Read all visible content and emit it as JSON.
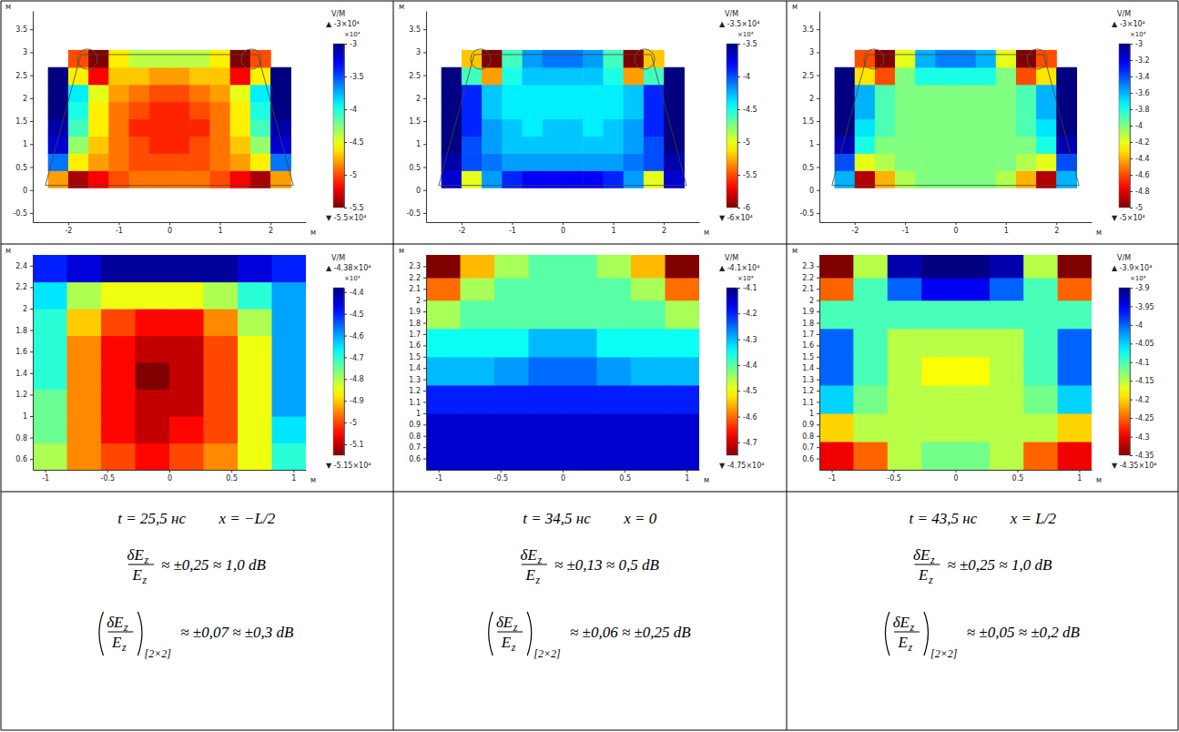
{
  "chart_data": [
    {
      "type": "heatmap",
      "x_edges": [
        -2.4,
        -2.0,
        -1.6,
        -1.2,
        -0.8,
        -0.4,
        0,
        0.4,
        0.8,
        1.2,
        1.6,
        2.0,
        2.4
      ],
      "y_edges": [
        0.05,
        0.425,
        0.8,
        1.175,
        1.55,
        1.925,
        2.3,
        2.675,
        3.05
      ],
      "z": [
        [
          -4.8,
          -5.4,
          -5.2,
          -5.0,
          -4.9,
          -4.9,
          -4.9,
          -4.9,
          -5.0,
          -5.2,
          -5.4,
          -4.8
        ],
        [
          -3.6,
          -4.6,
          -4.8,
          -4.9,
          -5.0,
          -5.0,
          -5.0,
          -5.0,
          -4.9,
          -4.8,
          -4.6,
          -3.6
        ],
        [
          -3.2,
          -4.3,
          -4.7,
          -4.9,
          -5.0,
          -5.1,
          -5.1,
          -5.0,
          -4.9,
          -4.7,
          -4.3,
          -3.2
        ],
        [
          -3.1,
          -4.1,
          -4.6,
          -4.9,
          -5.1,
          -5.1,
          -5.1,
          -5.1,
          -4.9,
          -4.6,
          -4.1,
          -3.1
        ],
        [
          -3.0,
          -4.0,
          -4.6,
          -4.9,
          -5.0,
          -5.1,
          -5.1,
          -5.0,
          -4.9,
          -4.6,
          -4.0,
          -3.0
        ],
        [
          -3.0,
          -3.9,
          -4.5,
          -4.8,
          -4.9,
          -5.0,
          -5.0,
          -4.9,
          -4.8,
          -4.5,
          -3.9,
          -3.0
        ],
        [
          -3.0,
          -4.6,
          -5.2,
          -4.7,
          -4.7,
          -4.8,
          -4.8,
          -4.7,
          -4.7,
          -5.2,
          -4.6,
          -3.0
        ],
        [
          null,
          -5.0,
          -5.5,
          -4.6,
          -4.4,
          -4.4,
          -4.4,
          -4.4,
          -4.6,
          -5.5,
          -5.0,
          null
        ]
      ],
      "xlim": [
        -2.7,
        2.7
      ],
      "ylim": [
        -0.7,
        3.9
      ],
      "xticks": [
        -2,
        -1,
        0,
        1,
        2
      ],
      "yticks": [
        -0.5,
        0,
        0.5,
        1,
        1.5,
        2,
        2.5,
        3,
        3.5
      ],
      "x_label": "м",
      "y_label": "м",
      "outline": [
        [
          -1.75,
          2.95
        ],
        [
          1.75,
          2.95
        ],
        [
          2.45,
          0.1
        ],
        [
          -2.45,
          0.1
        ]
      ],
      "wires": [
        [
          -1.62,
          2.85
        ],
        [
          1.62,
          2.85
        ]
      ],
      "wire_radius": 0.2,
      "colorbar": {
        "label": "V/M",
        "scale_label": "×10⁴",
        "max_label": "▲ -3×10⁴",
        "min_label": "▼ -5.5×10⁴",
        "range": [
          -5.5,
          -3
        ],
        "ticks": [
          -3,
          -3.5,
          -4,
          -4.5,
          -5,
          -5.5
        ]
      }
    },
    {
      "type": "heatmap",
      "x_edges": [
        -2.4,
        -2.0,
        -1.6,
        -1.2,
        -0.8,
        -0.4,
        0,
        0.4,
        0.8,
        1.2,
        1.6,
        2.0,
        2.4
      ],
      "y_edges": [
        0.05,
        0.425,
        0.8,
        1.175,
        1.55,
        1.925,
        2.3,
        2.675,
        3.05
      ],
      "z": [
        [
          -3.7,
          -5.0,
          -4.2,
          -3.9,
          -3.8,
          -3.8,
          -3.8,
          -3.8,
          -3.9,
          -4.2,
          -5.0,
          -3.7
        ],
        [
          -3.6,
          -4.0,
          -4.1,
          -4.2,
          -4.2,
          -4.2,
          -4.2,
          -4.2,
          -4.2,
          -4.1,
          -4.0,
          -3.6
        ],
        [
          -3.5,
          -4.0,
          -4.2,
          -4.3,
          -4.3,
          -4.3,
          -4.3,
          -4.3,
          -4.3,
          -4.2,
          -4.0,
          -3.5
        ],
        [
          -3.5,
          -3.9,
          -4.2,
          -4.3,
          -4.4,
          -4.3,
          -4.3,
          -4.4,
          -4.3,
          -4.2,
          -3.9,
          -3.5
        ],
        [
          -3.5,
          -3.9,
          -4.3,
          -4.4,
          -4.4,
          -4.4,
          -4.4,
          -4.4,
          -4.4,
          -4.3,
          -3.9,
          -3.5
        ],
        [
          -3.5,
          -3.9,
          -4.3,
          -4.4,
          -4.4,
          -4.4,
          -4.4,
          -4.4,
          -4.4,
          -4.3,
          -3.9,
          -3.5
        ],
        [
          -3.5,
          -4.6,
          -5.3,
          -4.5,
          -4.3,
          -4.3,
          -4.3,
          -4.3,
          -4.5,
          -5.3,
          -4.6,
          -3.5
        ],
        [
          null,
          -5.2,
          -6.0,
          -4.6,
          -4.2,
          -4.1,
          -4.1,
          -4.2,
          -4.6,
          -6.0,
          -5.2,
          null
        ]
      ],
      "xlim": [
        -2.7,
        2.7
      ],
      "ylim": [
        -0.7,
        3.9
      ],
      "xticks": [
        -2,
        -1,
        0,
        1,
        2
      ],
      "yticks": [
        -0.5,
        0,
        0.5,
        1,
        1.5,
        2,
        2.5,
        3,
        3.5
      ],
      "x_label": "м",
      "y_label": "м",
      "outline": [
        [
          -1.75,
          2.95
        ],
        [
          1.75,
          2.95
        ],
        [
          2.45,
          0.1
        ],
        [
          -2.45,
          0.1
        ]
      ],
      "wires": [
        [
          -1.62,
          2.85
        ],
        [
          1.62,
          2.85
        ]
      ],
      "wire_radius": 0.2,
      "colorbar": {
        "label": "V/M",
        "scale_label": "×10⁴",
        "max_label": "▲ -3.5×10⁴",
        "min_label": "▼ -6×10⁴",
        "range": [
          -6,
          -3.5
        ],
        "ticks": [
          -3.5,
          -4,
          -4.5,
          -5,
          -5.5,
          -6
        ]
      }
    },
    {
      "type": "heatmap",
      "x_edges": [
        -2.4,
        -2.0,
        -1.6,
        -1.2,
        -0.8,
        -0.4,
        0,
        0.4,
        0.8,
        1.2,
        1.6,
        2.0,
        2.4
      ],
      "y_edges": [
        0.05,
        0.425,
        0.8,
        1.175,
        1.55,
        1.925,
        2.3,
        2.675,
        3.05
      ],
      "z": [
        [
          -3.6,
          -4.9,
          -4.4,
          -4.1,
          -4.0,
          -4.0,
          -4.0,
          -4.0,
          -4.1,
          -4.4,
          -4.9,
          -3.6
        ],
        [
          -3.4,
          -4.2,
          -4.1,
          -4.0,
          -4.0,
          -4.0,
          -4.0,
          -4.0,
          -4.0,
          -4.1,
          -4.2,
          -3.4
        ],
        [
          -3.1,
          -3.8,
          -4.0,
          -4.0,
          -4.0,
          -4.0,
          -4.0,
          -4.0,
          -4.0,
          -4.0,
          -3.8,
          -3.1
        ],
        [
          -3.0,
          -3.7,
          -3.9,
          -4.0,
          -4.0,
          -4.0,
          -4.0,
          -4.0,
          -4.0,
          -3.9,
          -3.7,
          -3.0
        ],
        [
          -3.0,
          -3.6,
          -3.9,
          -4.0,
          -4.0,
          -4.0,
          -4.0,
          -4.0,
          -4.0,
          -3.9,
          -3.6,
          -3.0
        ],
        [
          -3.0,
          -3.6,
          -3.9,
          -4.0,
          -4.0,
          -4.0,
          -4.0,
          -4.0,
          -4.0,
          -3.9,
          -3.6,
          -3.0
        ],
        [
          -3.0,
          -4.3,
          -4.6,
          -4.0,
          -3.8,
          -3.8,
          -3.8,
          -3.8,
          -4.0,
          -4.6,
          -4.3,
          -3.0
        ],
        [
          null,
          -4.6,
          -5.0,
          -4.2,
          -3.6,
          -3.5,
          -3.5,
          -3.6,
          -4.2,
          -5.0,
          -4.6,
          null
        ]
      ],
      "xlim": [
        -2.7,
        2.7
      ],
      "ylim": [
        -0.7,
        3.9
      ],
      "xticks": [
        -2,
        -1,
        0,
        1,
        2
      ],
      "yticks": [
        -0.5,
        0,
        0.5,
        1,
        1.5,
        2,
        2.5,
        3,
        3.5
      ],
      "x_label": "м",
      "y_label": "м",
      "outline": [
        [
          -1.75,
          2.95
        ],
        [
          1.75,
          2.95
        ],
        [
          2.45,
          0.1
        ],
        [
          -2.45,
          0.1
        ]
      ],
      "wires": [
        [
          -1.62,
          2.85
        ],
        [
          1.62,
          2.85
        ]
      ],
      "wire_radius": 0.2,
      "colorbar": {
        "label": "V/M",
        "scale_label": "×10⁴",
        "max_label": "▲ -3×10⁴",
        "min_label": "▼ -5×10⁴",
        "range": [
          -5,
          -3
        ],
        "ticks": [
          -3,
          -3.2,
          -3.4,
          -3.6,
          -3.8,
          -4,
          -4.2,
          -4.4,
          -4.6,
          -4.8,
          -5
        ]
      }
    },
    {
      "type": "heatmap",
      "x_edges": [
        -1.1,
        -0.825,
        -0.55,
        -0.275,
        0,
        0.275,
        0.55,
        0.825,
        1.1
      ],
      "y_edges": [
        0.5,
        0.75,
        1,
        1.25,
        1.5,
        1.75,
        2,
        2.25,
        2.5
      ],
      "z": [
        [
          -4.8,
          -4.95,
          -5.0,
          -5.05,
          -5.0,
          -4.95,
          -4.85,
          -4.7
        ],
        [
          -4.75,
          -4.95,
          -5.05,
          -5.1,
          -5.05,
          -5.0,
          -4.85,
          -4.65
        ],
        [
          -4.75,
          -4.95,
          -5.05,
          -5.1,
          -5.1,
          -5.0,
          -4.85,
          -4.6
        ],
        [
          -4.7,
          -4.95,
          -5.05,
          -5.15,
          -5.1,
          -5.0,
          -4.85,
          -4.6
        ],
        [
          -4.7,
          -4.95,
          -5.05,
          -5.1,
          -5.1,
          -5.0,
          -4.85,
          -4.6
        ],
        [
          -4.7,
          -4.9,
          -5.0,
          -5.05,
          -5.05,
          -4.95,
          -4.8,
          -4.6
        ],
        [
          -4.65,
          -4.8,
          -4.85,
          -4.85,
          -4.85,
          -4.8,
          -4.7,
          -4.6
        ],
        [
          -4.5,
          -4.45,
          -4.4,
          -4.4,
          -4.4,
          -4.4,
          -4.45,
          -4.5
        ]
      ],
      "xlim": [
        -1.1,
        1.1
      ],
      "ylim": [
        0.5,
        2.5
      ],
      "xticks": [
        -1,
        -0.5,
        0,
        0.5,
        1
      ],
      "yticks": [
        0.6,
        0.8,
        1,
        1.2,
        1.4,
        1.6,
        1.8,
        2,
        2.2,
        2.4
      ],
      "x_label": "м",
      "y_label": "м",
      "colorbar": {
        "label": "V/M",
        "scale_label": "×10⁴",
        "max_label": "▲ -4.38×10⁴",
        "min_label": "▼ -5.15×10⁴",
        "range": [
          -5.15,
          -4.38
        ],
        "ticks": [
          -4.4,
          -4.5,
          -4.6,
          -4.7,
          -4.8,
          -4.9,
          -5,
          -5.1
        ]
      }
    },
    {
      "type": "heatmap",
      "x_edges": [
        -1.1,
        -0.825,
        -0.55,
        -0.275,
        0,
        0.275,
        0.55,
        0.825,
        1.1
      ],
      "y_edges": [
        0.5,
        0.75,
        1,
        1.25,
        1.5,
        1.75,
        2,
        2.2,
        2.4
      ],
      "z": [
        [
          -4.15,
          -4.15,
          -4.15,
          -4.15,
          -4.15,
          -4.15,
          -4.15,
          -4.15
        ],
        [
          -4.15,
          -4.15,
          -4.15,
          -4.15,
          -4.15,
          -4.15,
          -4.15,
          -4.15
        ],
        [
          -4.2,
          -4.2,
          -4.2,
          -4.2,
          -4.2,
          -4.2,
          -4.2,
          -4.2
        ],
        [
          -4.3,
          -4.3,
          -4.28,
          -4.25,
          -4.25,
          -4.28,
          -4.3,
          -4.3
        ],
        [
          -4.35,
          -4.35,
          -4.35,
          -4.3,
          -4.3,
          -4.35,
          -4.35,
          -4.35
        ],
        [
          -4.45,
          -4.4,
          -4.4,
          -4.4,
          -4.4,
          -4.4,
          -4.4,
          -4.45
        ],
        [
          -4.6,
          -4.45,
          -4.4,
          -4.4,
          -4.4,
          -4.4,
          -4.45,
          -4.6
        ],
        [
          -4.75,
          -4.55,
          -4.45,
          -4.4,
          -4.4,
          -4.45,
          -4.55,
          -4.75
        ]
      ],
      "xlim": [
        -1.1,
        1.1
      ],
      "ylim": [
        0.5,
        2.4
      ],
      "xticks": [
        -1,
        -0.5,
        0,
        0.5,
        1
      ],
      "yticks": [
        0.6,
        0.7,
        0.8,
        0.9,
        1,
        1.1,
        1.2,
        1.3,
        1.4,
        1.5,
        1.6,
        1.7,
        1.8,
        1.9,
        2,
        2.1,
        2.2,
        2.3
      ],
      "x_label": "м",
      "y_label": "м",
      "colorbar": {
        "label": "V/M",
        "scale_label": "×10⁴",
        "max_label": "▲ -4.1×10⁴",
        "min_label": "▼ -4.75×10⁴",
        "range": [
          -4.75,
          -4.1
        ],
        "ticks": [
          -4.1,
          -4.2,
          -4.3,
          -4.4,
          -4.5,
          -4.6,
          -4.7
        ]
      }
    },
    {
      "type": "heatmap",
      "x_edges": [
        -1.1,
        -0.825,
        -0.55,
        -0.275,
        0,
        0.275,
        0.55,
        0.825,
        1.1
      ],
      "y_edges": [
        0.5,
        0.75,
        1,
        1.25,
        1.5,
        1.75,
        2,
        2.2,
        2.4
      ],
      "z": [
        [
          -4.3,
          -4.25,
          -4.15,
          -4.12,
          -4.12,
          -4.15,
          -4.25,
          -4.3
        ],
        [
          -4.2,
          -4.15,
          -4.15,
          -4.15,
          -4.15,
          -4.15,
          -4.15,
          -4.2
        ],
        [
          -4.05,
          -4.12,
          -4.15,
          -4.15,
          -4.15,
          -4.15,
          -4.12,
          -4.05
        ],
        [
          -4.0,
          -4.1,
          -4.15,
          -4.18,
          -4.18,
          -4.15,
          -4.1,
          -4.0
        ],
        [
          -4.0,
          -4.1,
          -4.15,
          -4.15,
          -4.15,
          -4.15,
          -4.1,
          -4.0
        ],
        [
          -4.1,
          -4.1,
          -4.1,
          -4.1,
          -4.1,
          -4.1,
          -4.1,
          -4.1
        ],
        [
          -4.25,
          -4.1,
          -4.0,
          -3.95,
          -3.95,
          -4.0,
          -4.1,
          -4.25
        ],
        [
          -4.35,
          -4.15,
          -3.92,
          -3.9,
          -3.9,
          -3.92,
          -4.15,
          -4.35
        ]
      ],
      "xlim": [
        -1.1,
        1.1
      ],
      "ylim": [
        0.5,
        2.4
      ],
      "xticks": [
        -1,
        -0.5,
        0,
        0.5,
        1
      ],
      "yticks": [
        0.6,
        0.7,
        0.8,
        0.9,
        1,
        1.1,
        1.2,
        1.3,
        1.4,
        1.5,
        1.6,
        1.7,
        1.8,
        1.9,
        2,
        2.1,
        2.2,
        2.3
      ],
      "x_label": "м",
      "y_label": "м",
      "colorbar": {
        "label": "V/M",
        "scale_label": "×10⁴",
        "max_label": "▲ -3.9×10⁴",
        "min_label": "▼ -4.35×10⁴",
        "range": [
          -4.35,
          -3.9
        ],
        "ticks": [
          -3.9,
          -3.95,
          -4,
          -4.05,
          -4.1,
          -4.15,
          -4.2,
          -4.25,
          -4.3,
          -4.35
        ]
      }
    }
  ],
  "captions": [
    {
      "time": "t = 25,5 нс",
      "position": "x = −L/2",
      "numerator": "δE",
      "denominator": "E",
      "subscript": "z",
      "spread": "≈ ±0,25 ≈ 1,0 dB",
      "window": "[2×2]",
      "window_spread": "≈ ±0,07 ≈ ±0,3 dB"
    },
    {
      "time": "t = 34,5 нс",
      "position": "x = 0",
      "numerator": "δE",
      "denominator": "E",
      "subscript": "z",
      "spread": "≈ ±0,13 ≈ 0,5 dB",
      "window": "[2×2]",
      "window_spread": "≈ ±0,06 ≈ ±0,25 dB"
    },
    {
      "time": "t = 43,5 нс",
      "position": "x = L/2",
      "numerator": "δE",
      "denominator": "E",
      "subscript": "z",
      "spread": "≈ ±0,25 ≈ 1,0 dB",
      "window": "[2×2]",
      "window_spread": "≈ ±0,05 ≈ ±0,2 dB"
    }
  ]
}
